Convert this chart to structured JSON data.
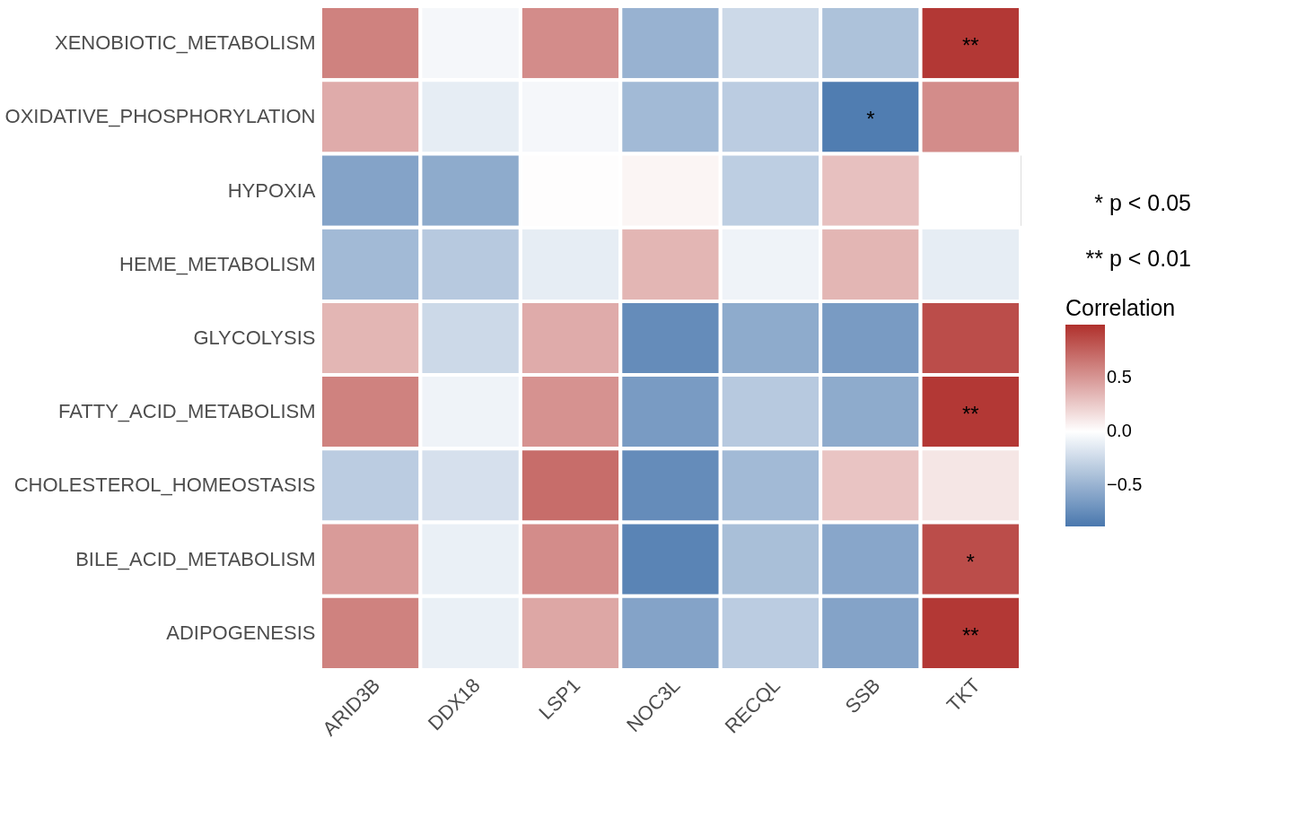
{
  "chart_data": {
    "type": "heatmap",
    "legend_title": "Correlation",
    "categories": [
      "ARID3B",
      "DDX18",
      "LSP1",
      "NOC3L",
      "RECQL",
      "SSB",
      "TKT"
    ],
    "y_categories": [
      "XENOBIOTIC_METABOLISM",
      "OXIDATIVE_PHOSPHORYLATION",
      "HYPOXIA",
      "HEME_METABOLISM",
      "GLYCOLYSIS",
      "FATTY_ACID_METABOLISM",
      "CHOLESTEROL_HOMEOSTASIS",
      "BILE_ACID_METABOLISM",
      "ADIPOGENESIS"
    ],
    "cells": [
      [
        0.6,
        -0.05,
        0.55,
        -0.5,
        -0.25,
        -0.4,
        0.95
      ],
      [
        0.4,
        -0.12,
        -0.05,
        -0.45,
        -0.33,
        -0.85,
        0.55
      ],
      [
        -0.6,
        -0.55,
        0.01,
        0.05,
        -0.32,
        0.3,
        null
      ],
      [
        -0.45,
        -0.35,
        -0.12,
        0.35,
        -0.08,
        0.35,
        -0.12
      ],
      [
        0.35,
        -0.25,
        0.4,
        -0.75,
        -0.55,
        -0.65,
        0.85
      ],
      [
        0.6,
        -0.08,
        0.52,
        -0.65,
        -0.35,
        -0.55,
        0.95
      ],
      [
        -0.33,
        -0.2,
        0.7,
        -0.75,
        -0.45,
        0.28,
        0.12
      ],
      [
        0.48,
        -0.1,
        0.55,
        -0.8,
        -0.42,
        -0.58,
        0.85
      ],
      [
        0.6,
        -0.1,
        0.42,
        -0.6,
        -0.33,
        -0.6,
        0.95
      ]
    ],
    "cell_labels": [
      [
        null,
        null,
        null,
        null,
        null,
        null,
        "**"
      ],
      [
        null,
        null,
        null,
        null,
        null,
        "*",
        null
      ],
      [
        null,
        null,
        null,
        null,
        null,
        null,
        null
      ],
      [
        null,
        null,
        null,
        null,
        null,
        null,
        null
      ],
      [
        null,
        null,
        null,
        null,
        null,
        null,
        null
      ],
      [
        null,
        null,
        null,
        null,
        null,
        null,
        "**"
      ],
      [
        null,
        null,
        null,
        null,
        null,
        null,
        null
      ],
      [
        null,
        null,
        null,
        null,
        null,
        null,
        "*"
      ],
      [
        null,
        null,
        null,
        null,
        null,
        null,
        "**"
      ]
    ],
    "clim": [
      -0.88,
      0.99
    ],
    "cticks": [
      0.5,
      {
        "value": 0,
        "label": "0.0"
      },
      {
        "value": -0.5,
        "label": "−0.5"
      }
    ],
    "colors": [
      "#4a78ae",
      "#ffffff",
      "#b0302c"
    ],
    "annotations": [
      "* p < 0.05",
      "** p < 0.01"
    ]
  }
}
